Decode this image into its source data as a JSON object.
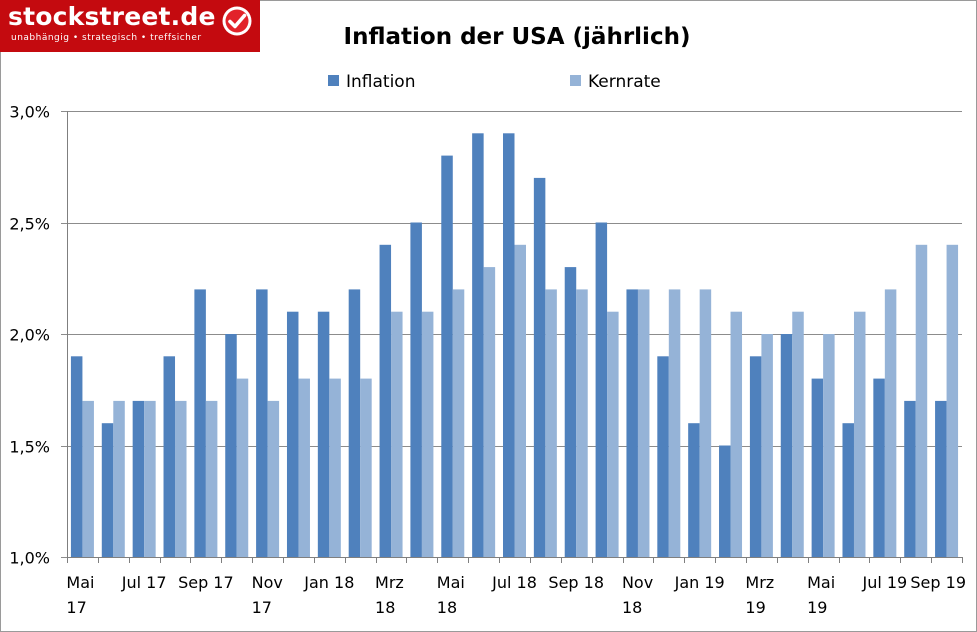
{
  "logo": {
    "name": "stockstreet.de",
    "tagline": "unabhängig • strategisch • treffsicher",
    "icon": "checkmark-icon"
  },
  "colors": {
    "inflation": "#4f81bd",
    "kernrate": "#95b3d7",
    "brand": "#c40a0f"
  },
  "chart_data": {
    "type": "bar",
    "title": "Inflation der USA (jährlich)",
    "legend_position": "top",
    "grid": true,
    "ylim": [
      1.0,
      3.0
    ],
    "yticks": [
      "1,0%",
      "1,5%",
      "2,0%",
      "2,5%",
      "3,0%"
    ],
    "ytick_values": [
      1.0,
      1.5,
      2.0,
      2.5,
      3.0
    ],
    "categories": [
      "Mai 17",
      "Jun 17",
      "Jul 17",
      "Aug 17",
      "Sep 17",
      "Okt 17",
      "Nov 17",
      "Dez 17",
      "Jan 18",
      "Feb 18",
      "Mrz 18",
      "Apr 18",
      "Mai 18",
      "Jun 18",
      "Jul 18",
      "Aug 18",
      "Sep 18",
      "Okt 18",
      "Nov 18",
      "Dez 18",
      "Jan 19",
      "Feb 19",
      "Mrz 19",
      "Apr 19",
      "Mai 19",
      "Jun 19",
      "Jul 19",
      "Aug 19",
      "Sep 19"
    ],
    "x_tick_labels": [
      {
        "index": 0,
        "lines": [
          "Mai",
          "17"
        ]
      },
      {
        "index": 2,
        "lines": [
          "Jul 17"
        ]
      },
      {
        "index": 4,
        "lines": [
          "Sep 17"
        ]
      },
      {
        "index": 6,
        "lines": [
          "Nov",
          "17"
        ]
      },
      {
        "index": 8,
        "lines": [
          "Jan 18"
        ]
      },
      {
        "index": 10,
        "lines": [
          "Mrz",
          "18"
        ]
      },
      {
        "index": 12,
        "lines": [
          "Mai",
          "18"
        ]
      },
      {
        "index": 14,
        "lines": [
          "Jul 18"
        ]
      },
      {
        "index": 16,
        "lines": [
          "Sep 18"
        ]
      },
      {
        "index": 18,
        "lines": [
          "Nov",
          "18"
        ]
      },
      {
        "index": 20,
        "lines": [
          "Jan 19"
        ]
      },
      {
        "index": 22,
        "lines": [
          "Mrz",
          "19"
        ]
      },
      {
        "index": 24,
        "lines": [
          "Mai",
          "19"
        ]
      },
      {
        "index": 26,
        "lines": [
          "Jul 19"
        ]
      },
      {
        "index": 28,
        "lines": [
          "Sep 19"
        ]
      }
    ],
    "series": [
      {
        "name": "Inflation",
        "color": "#4f81bd",
        "values": [
          1.9,
          1.6,
          1.7,
          1.9,
          2.2,
          2.0,
          2.2,
          2.1,
          2.1,
          2.2,
          2.4,
          2.5,
          2.8,
          2.9,
          2.9,
          2.7,
          2.3,
          2.5,
          2.2,
          1.9,
          1.6,
          1.5,
          1.9,
          2.0,
          1.8,
          1.6,
          1.8,
          1.7,
          1.7
        ]
      },
      {
        "name": "Kernrate",
        "color": "#95b3d7",
        "values": [
          1.7,
          1.7,
          1.7,
          1.7,
          1.7,
          1.8,
          1.7,
          1.8,
          1.8,
          1.8,
          2.1,
          2.1,
          2.2,
          2.3,
          2.4,
          2.2,
          2.2,
          2.1,
          2.2,
          2.2,
          2.2,
          2.1,
          2.0,
          2.1,
          2.0,
          2.1,
          2.2,
          2.4,
          2.4
        ]
      }
    ]
  }
}
